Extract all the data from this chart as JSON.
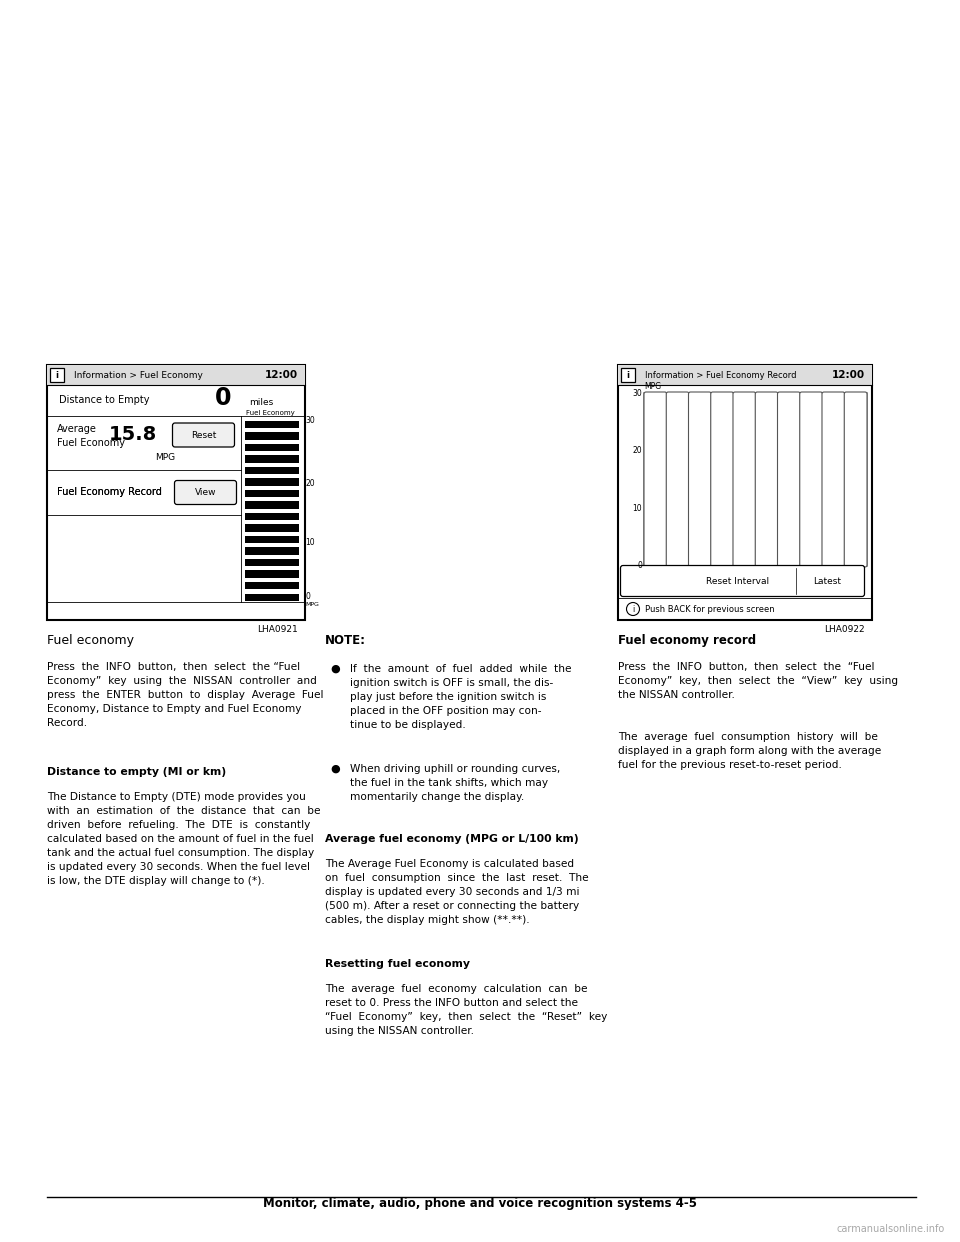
{
  "page_bg": "#ffffff",
  "page_width": 9.6,
  "page_height": 12.42,
  "screen1": {
    "title": "Information > Fuel Economy",
    "time": "12:00",
    "distance_label": "Distance to Empty",
    "distance_value": "0",
    "distance_unit": "miles",
    "avg_label1": "Average",
    "avg_label2": "Fuel Economy",
    "avg_value": "15.8",
    "avg_unit": "MPG",
    "reset_btn": "Reset",
    "fe_label": "Fuel Economy",
    "record_label": "Fuel Economy Record",
    "view_btn": "View",
    "footnote": "LHA0921"
  },
  "screen2": {
    "title": "Information > Fuel Economy Record",
    "time": "12:00",
    "mpg_label": "MPG",
    "y_labels": [
      "30",
      "20",
      "10",
      "0"
    ],
    "btn_left": "Reset Interval",
    "btn_right": "Latest",
    "back_text": "Push BACK for previous screen",
    "footnote": "LHA0922"
  },
  "section1_title": "Fuel economy",
  "subsection1_title": "Distance to empty (MI or km)",
  "note_title": "NOTE:",
  "avg_fe_title": "Average fuel economy (MPG or L/100 km)",
  "reset_title": "Resetting fuel economy",
  "section2_title": "Fuel economy record",
  "footer": "Monitor, climate, audio, phone and voice recognition systems 4-5"
}
